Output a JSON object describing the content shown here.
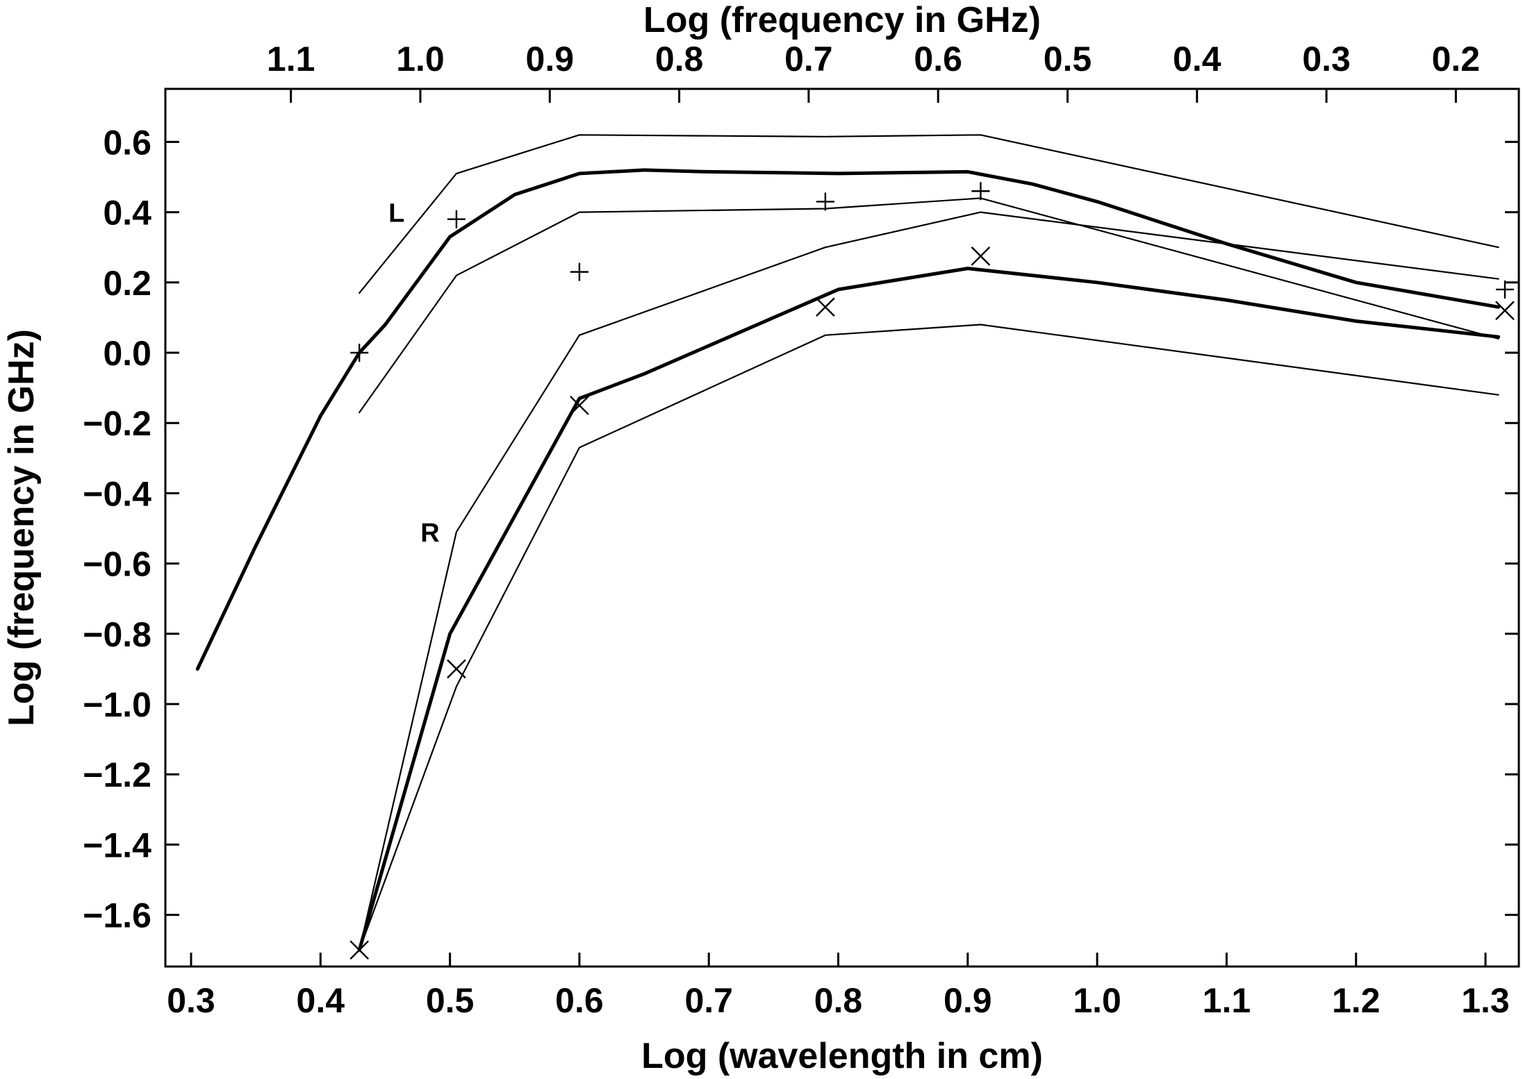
{
  "chart_data": {
    "type": "line",
    "title": "",
    "xlabel": "Log (wavelength in cm)",
    "x2label": "Log (frequency in GHz)",
    "ylabel": "Log (frequency in GHz)",
    "xlim": [
      0.28,
      1.33
    ],
    "ylim": [
      -1.75,
      0.75
    ],
    "x_ticks": [
      "0.3",
      "0.4",
      "0.5",
      "0.6",
      "0.7",
      "0.8",
      "0.9",
      "1.0",
      "1.1",
      "1.2",
      "1.3"
    ],
    "x2_ticks": [
      "1.1",
      "1.0",
      "0.9",
      "0.8",
      "0.7",
      "0.6",
      "0.5",
      "0.4",
      "0.3",
      "0.2"
    ],
    "y_ticks": [
      "0.6",
      "0.4",
      "0.2",
      "0.0",
      "−0.2",
      "−0.4",
      "−0.6",
      "−0.8",
      "−1.0",
      "−1.2",
      "−1.4",
      "−1.6"
    ],
    "grid": false,
    "curve_labels": [
      {
        "text": "L",
        "x": 0.465,
        "y": 0.4
      },
      {
        "text": "R",
        "x": 0.492,
        "y": -0.51
      }
    ],
    "series": [
      {
        "marker": "none",
        "line": "thick",
        "x": [
          0.305,
          0.35,
          0.4,
          0.43,
          0.45,
          0.5,
          0.55,
          0.6,
          0.65,
          0.7,
          0.8,
          0.9,
          0.95,
          1.0,
          1.1,
          1.2,
          1.31
        ],
        "y": [
          -0.9,
          -0.55,
          -0.18,
          0.0,
          0.08,
          0.33,
          0.45,
          0.51,
          0.52,
          0.515,
          0.51,
          0.515,
          0.48,
          0.43,
          0.31,
          0.2,
          0.13
        ]
      },
      {
        "marker": "none",
        "line": "thin",
        "x": [
          0.43,
          0.505,
          0.6,
          0.79,
          0.91,
          1.31
        ],
        "y": [
          0.17,
          0.51,
          0.62,
          0.615,
          0.62,
          0.3
        ]
      },
      {
        "marker": "none",
        "line": "thin",
        "x": [
          0.43,
          0.505,
          0.6,
          0.79,
          0.91,
          1.31
        ],
        "y": [
          -0.17,
          0.22,
          0.4,
          0.41,
          0.44,
          0.04
        ]
      },
      {
        "marker": "none",
        "line": "thick",
        "x": [
          0.43,
          0.5,
          0.6,
          0.65,
          0.7,
          0.8,
          0.9,
          1.0,
          1.1,
          1.2,
          1.31
        ],
        "y": [
          -1.7,
          -0.8,
          -0.13,
          -0.06,
          0.02,
          0.18,
          0.24,
          0.2,
          0.15,
          0.09,
          0.045
        ]
      },
      {
        "marker": "none",
        "line": "thin",
        "x": [
          0.43,
          0.505,
          0.6,
          0.79,
          0.91,
          1.31
        ],
        "y": [
          -1.7,
          -0.51,
          0.05,
          0.3,
          0.4,
          0.21
        ]
      },
      {
        "marker": "none",
        "line": "thin",
        "x": [
          0.43,
          0.505,
          0.6,
          0.79,
          0.91,
          1.31
        ],
        "y": [
          -1.7,
          -0.95,
          -0.27,
          0.05,
          0.08,
          -0.12
        ]
      },
      {
        "marker": "plus",
        "x": [
          0.43,
          0.505,
          0.6,
          0.79,
          0.91,
          1.315
        ],
        "y": [
          0.0,
          0.38,
          0.23,
          0.43,
          0.46,
          0.18
        ]
      },
      {
        "marker": "cross",
        "x": [
          0.43,
          0.505,
          0.6,
          0.79,
          0.91,
          1.315
        ],
        "y": [
          -1.7,
          -0.9,
          -0.15,
          0.13,
          0.275,
          0.12
        ]
      }
    ]
  }
}
